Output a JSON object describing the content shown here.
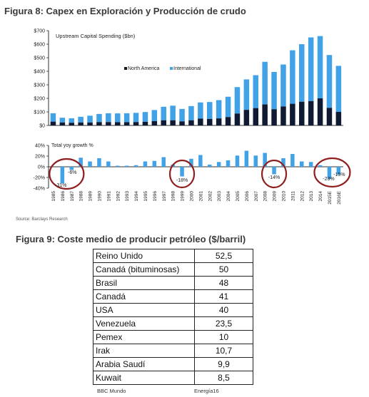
{
  "figure8": {
    "title": "Figura 8: Capex en Exploración y Producción de crudo",
    "source": "Source: Barclays Research"
  },
  "figure9": {
    "title": "Figura 9: Coste medio de producir petróleo ($/barril)",
    "rows": [
      {
        "country": "Reino Unido",
        "value": "52,5"
      },
      {
        "country": "Canadá (bituminosas)",
        "value": "50"
      },
      {
        "country": "Brasil",
        "value": "48"
      },
      {
        "country": "Canadá",
        "value": "41"
      },
      {
        "country": "USA",
        "value": "40"
      },
      {
        "country": "Venezuela",
        "value": "23,5"
      },
      {
        "country": "Pemex",
        "value": "10"
      },
      {
        "country": "Irak",
        "value": "10,7"
      },
      {
        "country": "Arabia Saudí",
        "value": "9,9"
      },
      {
        "country": "Kuwait",
        "value": "8,5"
      }
    ]
  },
  "footer": {
    "left": "BBC Mundo",
    "right": "Energía16"
  },
  "chart_data": [
    {
      "type": "bar",
      "stacked": true,
      "title": "Upstream Capital Spending ($bn)",
      "categories": [
        "1985",
        "1986",
        "1987",
        "1988",
        "1989",
        "1990",
        "1991",
        "1992",
        "1993",
        "1994",
        "1995",
        "1996",
        "1997",
        "1998",
        "1999",
        "2000",
        "2001",
        "2002",
        "2003",
        "2004",
        "2005",
        "2006",
        "2007",
        "2008",
        "2009",
        "2010",
        "2011",
        "2012",
        "2013",
        "2014",
        "2015E",
        "2016E"
      ],
      "series": [
        {
          "name": "North America",
          "color": "#111a33",
          "values": [
            28,
            22,
            20,
            22,
            22,
            25,
            25,
            24,
            24,
            25,
            27,
            32,
            38,
            38,
            30,
            38,
            50,
            48,
            52,
            62,
            88,
            115,
            128,
            155,
            120,
            140,
            160,
            175,
            180,
            200,
            130,
            100
          ]
        },
        {
          "name": "International",
          "color": "#41a2e8",
          "values": [
            62,
            35,
            33,
            42,
            50,
            60,
            65,
            65,
            66,
            68,
            72,
            82,
            100,
            108,
            92,
            105,
            120,
            125,
            135,
            150,
            195,
            225,
            243,
            315,
            275,
            310,
            395,
            425,
            470,
            460,
            390,
            340
          ]
        }
      ],
      "ylim": [
        0,
        700
      ],
      "yticks": [
        "$700",
        "$600",
        "$500",
        "$400",
        "$300",
        "$200",
        "$100",
        "$0"
      ],
      "legend_position": "top-center",
      "grid": false
    },
    {
      "type": "bar",
      "title": "Total yoy growth %",
      "categories": [
        "1985",
        "1986",
        "1987",
        "1988",
        "1989",
        "1990",
        "1991",
        "1992",
        "1993",
        "1994",
        "1995",
        "1996",
        "1997",
        "1998",
        "1999",
        "2000",
        "2001",
        "2002",
        "2003",
        "2004",
        "2005",
        "2006",
        "2007",
        "2008",
        "2009",
        "2010",
        "2011",
        "2012",
        "2013",
        "2014",
        "2015E",
        "2016E"
      ],
      "values": [
        0,
        -31,
        -6,
        17,
        10,
        16,
        10,
        2,
        2,
        3,
        10,
        11,
        18,
        4,
        -18,
        15,
        22,
        4,
        9,
        12,
        21,
        30,
        21,
        26,
        -14,
        16,
        24,
        10,
        9,
        3,
        -23,
        -15
      ],
      "ylim": [
        -40,
        40
      ],
      "yticks": [
        "40%",
        "20%",
        "0%",
        "-20%",
        "-40%"
      ],
      "annotations": [
        "-31%",
        "-6%",
        "-18%",
        "-14%",
        "-23%",
        "-15%"
      ],
      "grid": false
    }
  ]
}
